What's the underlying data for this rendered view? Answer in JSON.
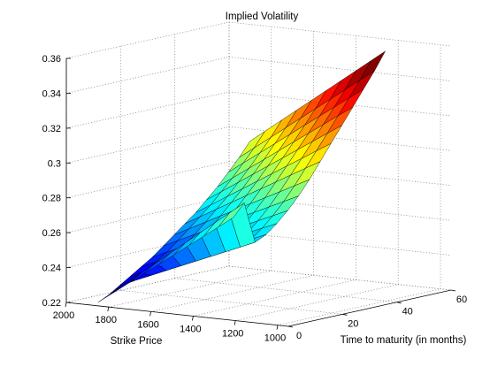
{
  "chart_data": {
    "type": "surface3d",
    "title": "Implied Volatility",
    "xlabel": "Strike Price",
    "ylabel": "Time to maturity (in months)",
    "zlabel": "",
    "strike_ticks": [
      "2000",
      "1800",
      "1600",
      "1400",
      "1200",
      "1000"
    ],
    "maturity_ticks": [
      "0",
      "20",
      "40",
      "60"
    ],
    "z_ticks": [
      "0.22",
      "0.24",
      "0.26",
      "0.28",
      "0.3",
      "0.32",
      "0.34",
      "0.36"
    ],
    "strike_range": [
      2000,
      950
    ],
    "maturity_range": [
      0,
      60
    ],
    "z_range": [
      0.22,
      0.36
    ],
    "grid": true,
    "colormap": "jet",
    "strike_grid": [
      1850,
      1780,
      1700,
      1630,
      1560,
      1490,
      1420,
      1350,
      1280,
      1210
    ],
    "maturity_grid": [
      0,
      4,
      8,
      12,
      16,
      20,
      24,
      28,
      32,
      36,
      40,
      44,
      48,
      52,
      56
    ],
    "volatility_at_high_strike": [
      0.222,
      0.225,
      0.229,
      0.233,
      0.237,
      0.241,
      0.246,
      0.251,
      0.256,
      0.261,
      0.267,
      0.273,
      0.28,
      0.287,
      0.295
    ],
    "volatility_at_low_strike": [
      0.279,
      0.286,
      0.262,
      0.265,
      0.27,
      0.276,
      0.283,
      0.291,
      0.3,
      0.309,
      0.318,
      0.327,
      0.336,
      0.345,
      0.355
    ]
  }
}
